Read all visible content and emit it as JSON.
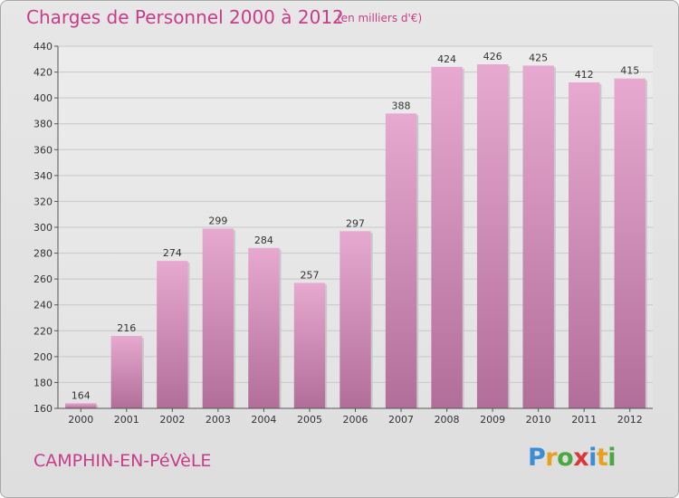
{
  "header": {
    "title": "Charges de Personnel 2000 à 2012",
    "subtitle": "(en milliers d'€)"
  },
  "footer": {
    "commune": "CAMPHIN-EN-PéVèLE",
    "logo_letters": [
      "P",
      "r",
      "o",
      "x",
      "i",
      "t",
      "i"
    ],
    "logo_colors": [
      "#3c8dd6",
      "#e8a020",
      "#49a842",
      "#d8383a",
      "#3c8dd6",
      "#e8a020",
      "#49a842"
    ]
  },
  "colors": {
    "bar_top": "#e7a9d0",
    "bar_bottom": "#b16e99",
    "grid": "#c8c8c8",
    "accent": "#c83c8a"
  },
  "chart_data": {
    "type": "bar",
    "title": "Charges de Personnel 2000 à 2012",
    "subtitle": "(en milliers d'€)",
    "categories": [
      "2000",
      "2001",
      "2002",
      "2003",
      "2004",
      "2005",
      "2006",
      "2007",
      "2008",
      "2009",
      "2010",
      "2011",
      "2012"
    ],
    "values": [
      164,
      216,
      274,
      299,
      284,
      257,
      297,
      388,
      424,
      426,
      425,
      412,
      415
    ],
    "ylim": [
      160,
      440
    ],
    "yticks": [
      160,
      180,
      200,
      220,
      240,
      260,
      280,
      300,
      320,
      340,
      360,
      380,
      400,
      420,
      440
    ],
    "grid": true,
    "xlabel": "",
    "ylabel": ""
  }
}
